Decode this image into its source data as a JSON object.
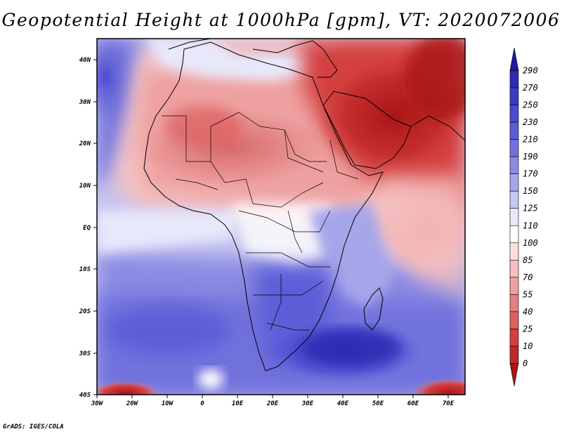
{
  "title": "Geopotential Height at 1000hPa [gpm], VT: 2020072006",
  "footer": "GrADS: IGES/COLA",
  "map": {
    "lon_labels": [
      "30W",
      "20W",
      "10W",
      "0",
      "10E",
      "20E",
      "30E",
      "40E",
      "50E",
      "60E",
      "70E"
    ],
    "lat_labels": [
      "40N",
      "30N",
      "20N",
      "10N",
      "EQ",
      "10S",
      "20S",
      "30S",
      "40S"
    ]
  },
  "colorbar": {
    "levels": [
      "290",
      "270",
      "250",
      "230",
      "210",
      "190",
      "170",
      "150",
      "125",
      "110",
      "100",
      "85",
      "70",
      "55",
      "40",
      "25",
      "10",
      "0"
    ],
    "colors": [
      "#1f1a9e",
      "#2c2cb4",
      "#3a3ac6",
      "#4b4bd0",
      "#5d5dd8",
      "#7272dd",
      "#8a8ae3",
      "#a6a6ea",
      "#c6c6f1",
      "#e8e8fb",
      "#ffffff",
      "#fbe0e0",
      "#f5c0c0",
      "#eea0a0",
      "#e68080",
      "#de6060",
      "#d44040",
      "#c02828",
      "#a81414"
    ]
  },
  "chart_data": {
    "type": "heatmap",
    "title": "Geopotential Height at 1000hPa [gpm], VT: 2020072006",
    "variable": "Geopotential Height",
    "level": "1000hPa",
    "units": "gpm",
    "valid_time": "2020072006",
    "lon_range": [
      -30,
      75
    ],
    "lat_range": [
      -40,
      45
    ],
    "contour_levels": [
      0,
      10,
      25,
      40,
      55,
      70,
      85,
      100,
      110,
      125,
      150,
      170,
      190,
      210,
      230,
      250,
      270,
      290
    ]
  }
}
